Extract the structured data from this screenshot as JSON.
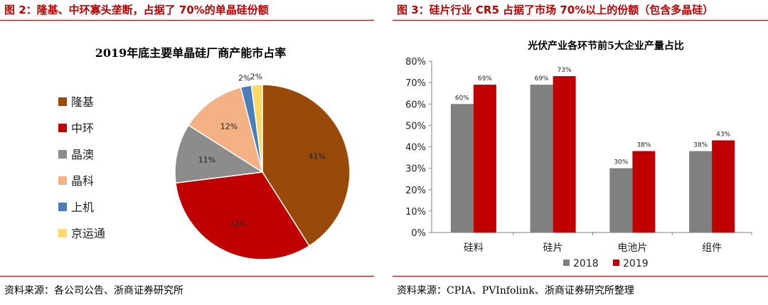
{
  "left_panel": {
    "figure_title": "图 2：隆基、中环寡头垄断，占据了 70%的单晶硅份额",
    "source": "资料来源：各公司公告、浙商证券研究所"
  },
  "right_panel": {
    "figure_title": "图 3：硅片行业 CR5 占据了市场 70%以上的份额（包含多晶硅）",
    "source": "资料来源：CPIA、PVInfolink、浙商证券研究所整理"
  },
  "colors": {
    "accent": "#c00000",
    "gray": "#808080"
  },
  "chart_data": [
    {
      "type": "pie",
      "title": "2019年底主要单晶硅厂商产能市占率",
      "labels": [
        "隆基",
        "中环",
        "晶澳",
        "晶科",
        "上机",
        "京运通"
      ],
      "values": [
        41,
        32,
        11,
        12,
        2,
        2
      ],
      "value_labels": [
        "41%",
        "32%",
        "11%",
        "12%",
        "2%",
        "2%"
      ],
      "colors": [
        "#9a4a08",
        "#c00000",
        "#8c8c8c",
        "#f4b183",
        "#4a7ebb",
        "#ffd966"
      ],
      "legend_position": "left"
    },
    {
      "type": "bar",
      "title": "光伏产业各环节前5大企业产量占比",
      "categories": [
        "硅料",
        "硅片",
        "电池片",
        "组件"
      ],
      "series": [
        {
          "name": "2018",
          "values": [
            60,
            69,
            30,
            38
          ],
          "labels": [
            "60%",
            "69%",
            "30%",
            "38%"
          ],
          "color": "#808080"
        },
        {
          "name": "2019",
          "values": [
            69,
            73,
            38,
            43
          ],
          "labels": [
            "69%",
            "73%",
            "38%",
            "43%"
          ],
          "color": "#c00000"
        }
      ],
      "ylim": [
        0,
        80
      ],
      "yticks": [
        "0%",
        "10%",
        "20%",
        "30%",
        "40%",
        "50%",
        "60%",
        "70%",
        "80%"
      ],
      "grid": false,
      "legend_position": "bottom"
    }
  ]
}
